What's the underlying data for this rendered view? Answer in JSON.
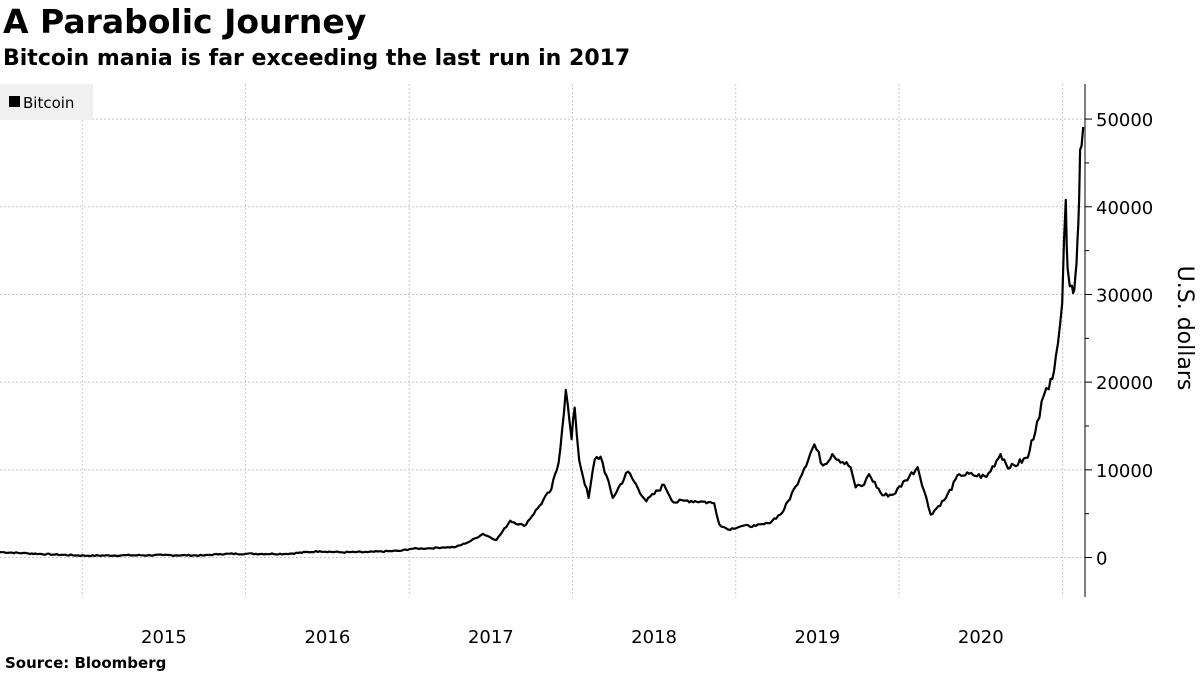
{
  "header": {
    "title": "A Parabolic Journey",
    "subtitle": "Bitcoin mania is far exceeding the last run in 2017"
  },
  "footer": {
    "source": "Source: Bloomberg"
  },
  "colors": {
    "line": "#000000",
    "grid": "#c8c8c8",
    "legend_bg": "#f0f0f0"
  },
  "chart_data": {
    "type": "line",
    "title": "A Parabolic Journey",
    "subtitle": "Bitcoin mania is far exceeding the last run in 2017",
    "ylabel": "U.S. dollars",
    "xlabel": "",
    "y_axis_position": "right",
    "ylim": [
      -4500,
      54000
    ],
    "y_ticks": [
      0,
      10000,
      20000,
      30000,
      40000,
      50000
    ],
    "x_ticks": [
      "2015",
      "2016",
      "2017",
      "2018",
      "2019",
      "2020"
    ],
    "xlim": [
      "2014-07-01",
      "2021-02-20"
    ],
    "grid": true,
    "legend": {
      "position": "top-left",
      "entries": [
        "Bitcoin"
      ]
    },
    "series": [
      {
        "name": "Bitcoin",
        "points": [
          [
            "2014-07-01",
            620
          ],
          [
            "2014-09-01",
            480
          ],
          [
            "2014-11-01",
            330
          ],
          [
            "2015-01-15",
            210
          ],
          [
            "2015-04-01",
            250
          ],
          [
            "2015-07-01",
            270
          ],
          [
            "2015-10-01",
            240
          ],
          [
            "2015-11-05",
            400
          ],
          [
            "2016-01-01",
            430
          ],
          [
            "2016-04-01",
            420
          ],
          [
            "2016-06-15",
            720
          ],
          [
            "2016-08-01",
            600
          ],
          [
            "2016-10-01",
            620
          ],
          [
            "2016-12-15",
            780
          ],
          [
            "2017-01-05",
            1000
          ],
          [
            "2017-02-15",
            1050
          ],
          [
            "2017-03-15",
            1150
          ],
          [
            "2017-04-15",
            1200
          ],
          [
            "2017-05-15",
            1800
          ],
          [
            "2017-06-15",
            2700
          ],
          [
            "2017-07-15",
            2000
          ],
          [
            "2017-08-15",
            4200
          ],
          [
            "2017-09-15",
            3600
          ],
          [
            "2017-10-15",
            5600
          ],
          [
            "2017-11-15",
            7800
          ],
          [
            "2017-12-01",
            10800
          ],
          [
            "2017-12-17",
            19100
          ],
          [
            "2017-12-30",
            13500
          ],
          [
            "2018-01-06",
            17100
          ],
          [
            "2018-01-16",
            11100
          ],
          [
            "2018-02-06",
            6800
          ],
          [
            "2018-02-20",
            11200
          ],
          [
            "2018-03-05",
            11500
          ],
          [
            "2018-04-01",
            6800
          ],
          [
            "2018-05-05",
            9800
          ],
          [
            "2018-06-15",
            6400
          ],
          [
            "2018-07-25",
            8300
          ],
          [
            "2018-08-15",
            6300
          ],
          [
            "2018-09-15",
            6500
          ],
          [
            "2018-10-15",
            6400
          ],
          [
            "2018-11-14",
            6200
          ],
          [
            "2018-11-25",
            3800
          ],
          [
            "2018-12-15",
            3200
          ],
          [
            "2019-01-15",
            3600
          ],
          [
            "2019-02-15",
            3600
          ],
          [
            "2019-03-15",
            3900
          ],
          [
            "2019-04-15",
            5100
          ],
          [
            "2019-05-15",
            8100
          ],
          [
            "2019-06-26",
            12900
          ],
          [
            "2019-07-15",
            10500
          ],
          [
            "2019-08-05",
            11800
          ],
          [
            "2019-09-15",
            10300
          ],
          [
            "2019-09-26",
            8000
          ],
          [
            "2019-10-15",
            8300
          ],
          [
            "2019-10-26",
            9500
          ],
          [
            "2019-11-25",
            7100
          ],
          [
            "2019-12-20",
            7200
          ],
          [
            "2020-01-15",
            8800
          ],
          [
            "2020-02-12",
            10300
          ],
          [
            "2020-03-12",
            4900
          ],
          [
            "2020-04-15",
            6800
          ],
          [
            "2020-05-15",
            9500
          ],
          [
            "2020-06-15",
            9400
          ],
          [
            "2020-07-15",
            9200
          ],
          [
            "2020-08-15",
            11800
          ],
          [
            "2020-09-05",
            10200
          ],
          [
            "2020-10-15",
            11400
          ],
          [
            "2020-11-05",
            15500
          ],
          [
            "2020-11-20",
            18500
          ],
          [
            "2020-12-01",
            19200
          ],
          [
            "2020-12-17",
            23000
          ],
          [
            "2020-12-31",
            29000
          ],
          [
            "2021-01-08",
            40800
          ],
          [
            "2021-01-12",
            33000
          ],
          [
            "2021-01-22",
            31000
          ],
          [
            "2021-01-27",
            30500
          ],
          [
            "2021-02-01",
            33500
          ],
          [
            "2021-02-05",
            38000
          ],
          [
            "2021-02-09",
            46500
          ],
          [
            "2021-02-16",
            49100
          ]
        ]
      }
    ]
  }
}
